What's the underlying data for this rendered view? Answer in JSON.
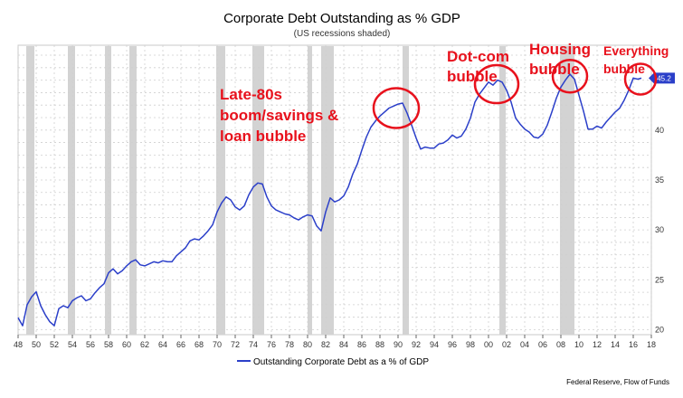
{
  "chart_data": {
    "type": "line",
    "title": "Corporate Debt Outstanding as % GDP",
    "subtitle": "(US recessions shaded)",
    "xlabel": "",
    "ylabel": "",
    "xlim": [
      1948,
      2018
    ],
    "ylim": [
      19.5,
      48.5
    ],
    "x_ticks": [
      "48",
      "50",
      "52",
      "54",
      "56",
      "58",
      "60",
      "62",
      "64",
      "66",
      "68",
      "70",
      "72",
      "74",
      "76",
      "78",
      "80",
      "82",
      "84",
      "86",
      "88",
      "90",
      "92",
      "94",
      "96",
      "98",
      "00",
      "02",
      "04",
      "06",
      "08",
      "10",
      "12",
      "14",
      "16",
      "18"
    ],
    "y_ticks": [
      20,
      25,
      30,
      35,
      40
    ],
    "grid": true,
    "legend_position": "bottom-center",
    "series": [
      {
        "name": "Outstanding Corporate Debt as a % of GDP",
        "color": "#2b3fc9",
        "points": [
          [
            1948.0,
            21.2
          ],
          [
            1948.5,
            20.4
          ],
          [
            1949.0,
            22.5
          ],
          [
            1949.5,
            23.3
          ],
          [
            1950.0,
            23.8
          ],
          [
            1950.5,
            22.4
          ],
          [
            1951.0,
            21.5
          ],
          [
            1951.5,
            20.8
          ],
          [
            1952.0,
            20.4
          ],
          [
            1952.5,
            22.1
          ],
          [
            1953.0,
            22.4
          ],
          [
            1953.5,
            22.2
          ],
          [
            1954.0,
            22.9
          ],
          [
            1954.5,
            23.2
          ],
          [
            1955.0,
            23.4
          ],
          [
            1955.5,
            22.9
          ],
          [
            1956.0,
            23.1
          ],
          [
            1956.5,
            23.7
          ],
          [
            1957.0,
            24.2
          ],
          [
            1957.5,
            24.6
          ],
          [
            1958.0,
            25.7
          ],
          [
            1958.5,
            26.1
          ],
          [
            1959.0,
            25.6
          ],
          [
            1959.5,
            25.9
          ],
          [
            1960.0,
            26.4
          ],
          [
            1960.5,
            26.8
          ],
          [
            1961.0,
            27.0
          ],
          [
            1961.5,
            26.5
          ],
          [
            1962.0,
            26.4
          ],
          [
            1962.5,
            26.6
          ],
          [
            1963.0,
            26.8
          ],
          [
            1963.5,
            26.7
          ],
          [
            1964.0,
            26.9
          ],
          [
            1964.5,
            26.8
          ],
          [
            1965.0,
            26.8
          ],
          [
            1965.5,
            27.4
          ],
          [
            1966.0,
            27.8
          ],
          [
            1966.5,
            28.2
          ],
          [
            1967.0,
            28.9
          ],
          [
            1967.5,
            29.1
          ],
          [
            1968.0,
            29.0
          ],
          [
            1968.5,
            29.4
          ],
          [
            1969.0,
            29.9
          ],
          [
            1969.5,
            30.5
          ],
          [
            1970.0,
            31.8
          ],
          [
            1970.5,
            32.7
          ],
          [
            1971.0,
            33.3
          ],
          [
            1971.5,
            33.0
          ],
          [
            1972.0,
            32.3
          ],
          [
            1972.5,
            32.0
          ],
          [
            1973.0,
            32.4
          ],
          [
            1973.5,
            33.5
          ],
          [
            1974.0,
            34.3
          ],
          [
            1974.5,
            34.7
          ],
          [
            1975.0,
            34.6
          ],
          [
            1975.5,
            33.3
          ],
          [
            1976.0,
            32.4
          ],
          [
            1976.5,
            32.0
          ],
          [
            1977.0,
            31.8
          ],
          [
            1977.5,
            31.6
          ],
          [
            1978.0,
            31.5
          ],
          [
            1978.5,
            31.2
          ],
          [
            1979.0,
            31.0
          ],
          [
            1979.5,
            31.3
          ],
          [
            1980.0,
            31.5
          ],
          [
            1980.5,
            31.4
          ],
          [
            1981.0,
            30.4
          ],
          [
            1981.5,
            29.9
          ],
          [
            1982.0,
            31.8
          ],
          [
            1982.5,
            33.2
          ],
          [
            1983.0,
            32.8
          ],
          [
            1983.5,
            33.0
          ],
          [
            1984.0,
            33.4
          ],
          [
            1984.5,
            34.3
          ],
          [
            1985.0,
            35.6
          ],
          [
            1985.5,
            36.6
          ],
          [
            1986.0,
            38.0
          ],
          [
            1986.5,
            39.3
          ],
          [
            1987.0,
            40.3
          ],
          [
            1987.5,
            40.9
          ],
          [
            1988.0,
            41.4
          ],
          [
            1988.5,
            41.8
          ],
          [
            1989.0,
            42.2
          ],
          [
            1989.5,
            42.4
          ],
          [
            1990.0,
            42.6
          ],
          [
            1990.5,
            42.7
          ],
          [
            1991.0,
            41.7
          ],
          [
            1991.5,
            40.5
          ],
          [
            1992.0,
            39.2
          ],
          [
            1992.5,
            38.1
          ],
          [
            1993.0,
            38.3
          ],
          [
            1993.5,
            38.2
          ],
          [
            1994.0,
            38.2
          ],
          [
            1994.5,
            38.6
          ],
          [
            1995.0,
            38.7
          ],
          [
            1995.5,
            39.0
          ],
          [
            1996.0,
            39.5
          ],
          [
            1996.5,
            39.2
          ],
          [
            1997.0,
            39.4
          ],
          [
            1997.5,
            40.1
          ],
          [
            1998.0,
            41.2
          ],
          [
            1998.5,
            42.8
          ],
          [
            1999.0,
            43.6
          ],
          [
            1999.5,
            44.2
          ],
          [
            2000.0,
            44.8
          ],
          [
            2000.5,
            44.5
          ],
          [
            2001.0,
            45.0
          ],
          [
            2001.5,
            44.8
          ],
          [
            2002.0,
            44.0
          ],
          [
            2002.5,
            42.8
          ],
          [
            2003.0,
            41.2
          ],
          [
            2003.5,
            40.6
          ],
          [
            2004.0,
            40.1
          ],
          [
            2004.5,
            39.8
          ],
          [
            2005.0,
            39.3
          ],
          [
            2005.5,
            39.2
          ],
          [
            2006.0,
            39.6
          ],
          [
            2006.5,
            40.5
          ],
          [
            2007.0,
            41.8
          ],
          [
            2007.5,
            43.2
          ],
          [
            2008.0,
            44.3
          ],
          [
            2008.5,
            45.0
          ],
          [
            2009.0,
            45.6
          ],
          [
            2009.5,
            45.1
          ],
          [
            2010.0,
            43.5
          ],
          [
            2010.5,
            41.9
          ],
          [
            2011.0,
            40.1
          ],
          [
            2011.5,
            40.1
          ],
          [
            2012.0,
            40.4
          ],
          [
            2012.5,
            40.2
          ],
          [
            2013.0,
            40.8
          ],
          [
            2013.5,
            41.3
          ],
          [
            2014.0,
            41.8
          ],
          [
            2014.5,
            42.2
          ],
          [
            2015.0,
            43.0
          ],
          [
            2015.5,
            44.0
          ],
          [
            2016.0,
            45.2
          ],
          [
            2016.5,
            45.1
          ],
          [
            2016.9,
            45.2
          ]
        ]
      }
    ],
    "last_value_label": "45.2",
    "recessions": [
      [
        1948.9,
        1949.8
      ],
      [
        1953.5,
        1954.3
      ],
      [
        1957.6,
        1958.3
      ],
      [
        1960.3,
        1961.1
      ],
      [
        1969.9,
        1970.9
      ],
      [
        1973.9,
        1975.2
      ],
      [
        1980.0,
        1980.5
      ],
      [
        1981.5,
        1982.9
      ],
      [
        1990.5,
        1991.2
      ],
      [
        2001.2,
        2001.9
      ],
      [
        2007.9,
        2009.5
      ]
    ],
    "annotations": [
      {
        "id": "late80s",
        "lines": [
          "Late-80s",
          "boom/savings &",
          "loan bubble"
        ],
        "x": 1989.8,
        "y": 42.2,
        "rx": 25,
        "ry": 22
      },
      {
        "id": "dotcom",
        "lines": [
          "Dot-com",
          "bubble"
        ],
        "x": 2000.9,
        "y": 44.6,
        "rx": 24,
        "ry": 21
      },
      {
        "id": "housing",
        "lines": [
          "Housing",
          "bubble"
        ],
        "x": 2009.0,
        "y": 45.4,
        "rx": 19,
        "ry": 18
      },
      {
        "id": "everything",
        "lines": [
          "Everything",
          "bubble"
        ],
        "x": 2016.8,
        "y": 45.1,
        "rx": 17,
        "ry": 17
      }
    ],
    "source": "Federal Reserve, Flow of Funds"
  }
}
